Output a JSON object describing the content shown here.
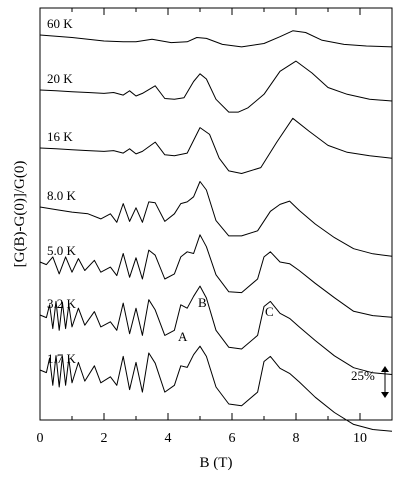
{
  "chart_data": {
    "type": "line",
    "xlabel": "B (T)",
    "ylabel": "[G(B)-G(0)]/G(0)",
    "xlim": [
      0,
      11
    ],
    "x_ticks": [
      "0",
      "2",
      "4",
      "6",
      "8",
      "10"
    ],
    "grid": false,
    "scale_bar": {
      "label": "25%",
      "value_percent": 25
    },
    "series": [
      {
        "name": "60 K",
        "x": [
          0,
          1,
          2,
          2.6,
          3.0,
          3.5,
          4.1,
          4.6,
          4.9,
          5.2,
          5.7,
          6.3,
          7.0,
          7.5,
          7.9,
          8.3,
          8.8,
          9.5,
          10.2,
          11.0
        ],
        "y": [
          0,
          -3,
          -7,
          -8,
          -8,
          -5,
          -9,
          -8,
          -3,
          -4,
          -11,
          -14,
          -10,
          -2,
          5,
          3,
          -6,
          -11,
          -13,
          -14
        ]
      },
      {
        "name": "20 K",
        "x": [
          0,
          0.5,
          1.0,
          1.5,
          2.0,
          2.3,
          2.6,
          2.8,
          3.0,
          3.2,
          3.6,
          3.9,
          4.2,
          4.5,
          4.8,
          5.0,
          5.2,
          5.5,
          5.9,
          6.2,
          6.5,
          7.0,
          7.5,
          8.0,
          8.5,
          9.0,
          9.6,
          10.3,
          11.0
        ],
        "y": [
          0,
          -1,
          -2,
          -3,
          -4,
          -3,
          -6,
          -1,
          -7,
          -4,
          5,
          -10,
          -11,
          -9,
          10,
          19,
          13,
          -11,
          -26,
          -26,
          -21,
          -5,
          22,
          34,
          20,
          3,
          -5,
          -11,
          -13
        ]
      },
      {
        "name": "16 K",
        "x": [
          0,
          0.5,
          1.0,
          1.5,
          2.0,
          2.3,
          2.6,
          2.8,
          3.0,
          3.2,
          3.6,
          3.9,
          4.2,
          4.6,
          5.0,
          5.3,
          5.6,
          5.9,
          6.3,
          6.9,
          7.4,
          7.9,
          8.4,
          9.0,
          9.6,
          10.3,
          11.0
        ],
        "y": [
          0,
          -1,
          -2,
          -3,
          -4,
          -3,
          -6,
          -1,
          -7,
          -4,
          7,
          -8,
          -9,
          -6,
          24,
          16,
          -12,
          -27,
          -30,
          -23,
          7,
          35,
          20,
          3,
          -5,
          -9,
          -12
        ]
      },
      {
        "name": "8.0 K",
        "x": [
          0,
          0.5,
          1.0,
          1.5,
          1.9,
          2.2,
          2.4,
          2.6,
          2.8,
          3.0,
          3.2,
          3.4,
          3.6,
          3.9,
          4.2,
          4.4,
          4.6,
          4.8,
          5.0,
          5.2,
          5.5,
          5.9,
          6.3,
          6.8,
          7.2,
          7.5,
          7.8,
          8.1,
          8.6,
          9.2,
          9.8,
          10.4,
          11.0
        ],
        "y": [
          0,
          -3,
          -6,
          -8,
          -14,
          -8,
          -18,
          4,
          -17,
          -1,
          -18,
          6,
          5,
          -17,
          -8,
          4,
          6,
          12,
          30,
          20,
          -16,
          -34,
          -34,
          -28,
          -5,
          3,
          7,
          -4,
          -20,
          -36,
          -49,
          -55,
          -58
        ]
      },
      {
        "name": "5.0 K",
        "x": [
          0,
          0.2,
          0.4,
          0.6,
          0.8,
          1.0,
          1.2,
          1.4,
          1.7,
          1.9,
          2.2,
          2.4,
          2.6,
          2.8,
          3.0,
          3.2,
          3.4,
          3.6,
          3.9,
          4.2,
          4.4,
          4.6,
          4.8,
          5.0,
          5.2,
          5.5,
          5.9,
          6.3,
          6.8,
          7.0,
          7.2,
          7.5,
          7.8,
          8.1,
          8.6,
          9.2,
          9.8,
          10.4,
          11.0
        ],
        "y": [
          0,
          -3,
          6,
          -14,
          6,
          -12,
          4,
          -10,
          2,
          -12,
          -6,
          -16,
          10,
          -18,
          5,
          -20,
          14,
          8,
          -20,
          -14,
          6,
          12,
          10,
          32,
          18,
          -15,
          -35,
          -36,
          -20,
          6,
          12,
          0,
          -2,
          -10,
          -25,
          -42,
          -58,
          -63,
          -65
        ]
      },
      {
        "name": "3.2 K",
        "x": [
          0,
          0.2,
          0.3,
          0.4,
          0.5,
          0.6,
          0.7,
          0.8,
          0.9,
          1.0,
          1.2,
          1.4,
          1.7,
          1.9,
          2.2,
          2.4,
          2.6,
          2.8,
          3.0,
          3.2,
          3.4,
          3.6,
          3.9,
          4.2,
          4.4,
          4.6,
          4.8,
          5.0,
          5.2,
          5.5,
          5.9,
          6.3,
          6.8,
          7.0,
          7.2,
          7.5,
          7.8,
          8.1,
          8.6,
          9.2,
          9.8,
          10.4,
          11.0
        ],
        "y": [
          0,
          -3,
          12,
          -16,
          16,
          -18,
          15,
          -16,
          12,
          -14,
          8,
          -12,
          4,
          -14,
          -8,
          -18,
          14,
          -22,
          8,
          -24,
          18,
          6,
          -24,
          -18,
          12,
          8,
          22,
          34,
          20,
          -18,
          -38,
          -40,
          -24,
          10,
          16,
          2,
          -4,
          -14,
          -30,
          -48,
          -62,
          -68,
          -70
        ]
      },
      {
        "name": "1.7 K",
        "x": [
          0,
          0.2,
          0.3,
          0.4,
          0.5,
          0.6,
          0.7,
          0.8,
          0.9,
          1.0,
          1.2,
          1.4,
          1.7,
          1.9,
          2.2,
          2.4,
          2.6,
          2.8,
          3.0,
          3.2,
          3.4,
          3.6,
          3.9,
          4.2,
          4.4,
          4.6,
          4.8,
          5.0,
          5.2,
          5.5,
          5.9,
          6.3,
          6.8,
          7.0,
          7.2,
          7.5,
          7.8,
          8.1,
          8.6,
          9.2,
          9.8,
          10.4,
          11.0
        ],
        "y": [
          0,
          -3,
          14,
          -18,
          17,
          -20,
          16,
          -18,
          13,
          -15,
          9,
          -13,
          5,
          -15,
          -8,
          -18,
          16,
          -23,
          9,
          -26,
          20,
          8,
          -26,
          -18,
          5,
          3,
          18,
          28,
          16,
          -20,
          -40,
          -42,
          -26,
          10,
          16,
          2,
          -4,
          -14,
          -32,
          -50,
          -64,
          -70,
          -72
        ]
      }
    ],
    "annotations": [
      "A",
      "B",
      "C"
    ]
  }
}
